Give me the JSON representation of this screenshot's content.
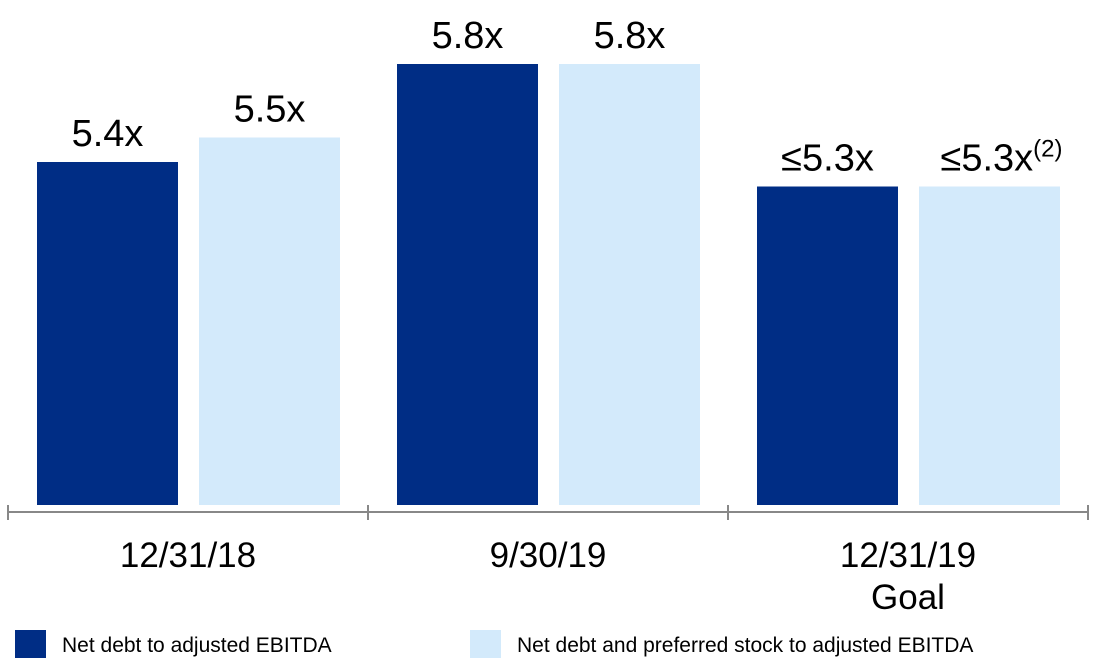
{
  "chart_data": {
    "type": "bar",
    "categories": [
      "12/31/18",
      "9/30/19",
      "12/31/19\nGoal"
    ],
    "series": [
      {
        "name": "Net debt to adjusted EBITDA",
        "color": "#002d85",
        "values": [
          5.4,
          5.8,
          5.3
        ],
        "value_labels": [
          "5.4x",
          "5.8x",
          "≤5.3x"
        ]
      },
      {
        "name": "Net debt and preferred stock to adjusted EBITDA",
        "color": "#d3eafb",
        "values": [
          5.5,
          5.8,
          5.3
        ],
        "value_labels": [
          "5.5x",
          "5.8x",
          "≤5.3x"
        ],
        "value_label_footnotes": [
          null,
          null,
          "(2)"
        ]
      }
    ],
    "ylim": [
      4,
      6.1
    ]
  }
}
